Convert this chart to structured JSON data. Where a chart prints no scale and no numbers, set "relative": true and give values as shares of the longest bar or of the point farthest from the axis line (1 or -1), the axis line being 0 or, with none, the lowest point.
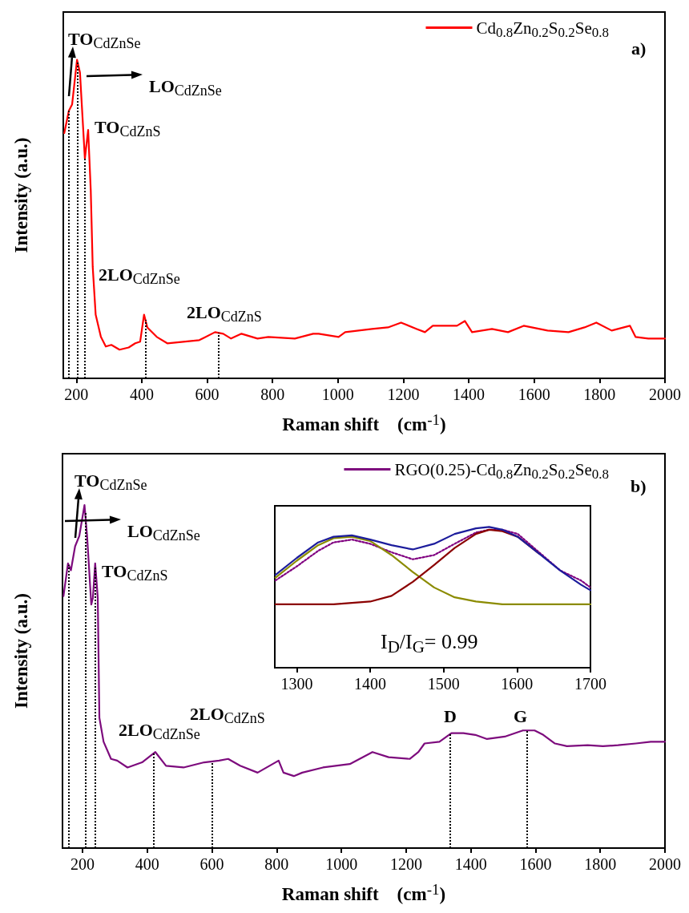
{
  "chart_data": [
    {
      "type": "line",
      "relative": true,
      "xlabel": "Raman shift    (cm$^{-1}$)",
      "ylabel": "Intensity (a.u.)",
      "xlim": [
        160,
        2000
      ],
      "xticks": [
        200,
        400,
        600,
        800,
        1000,
        1200,
        1400,
        1600,
        1800,
        2000
      ],
      "tick_labels": "x",
      "grid": false,
      "legend": "top right",
      "marker": "none",
      "line_style": "solid",
      "x": [
        163,
        177,
        187,
        202,
        211,
        226,
        236,
        244,
        250,
        259,
        275,
        290,
        307,
        332,
        360,
        380,
        395,
        407,
        417,
        446,
        478,
        527,
        576,
        624,
        649,
        673,
        705,
        754,
        787,
        868,
        924,
        941,
        1002,
        1022,
        1104,
        1153,
        1193,
        1241,
        1266,
        1290,
        1364,
        1388,
        1410,
        1471,
        1520,
        1568,
        1641,
        1705,
        1754,
        1790,
        1837,
        1893,
        1910,
        1949,
        1985,
        2000
      ],
      "series": [
        {
          "name": "Cd$_{0.8}$Zn$_{0.2}$S$_{0.2}$Se$_{0.8}$",
          "color": "#ff0000",
          "values": [
            0.77,
            0.84,
            0.86,
            1.0,
            0.96,
            0.69,
            0.78,
            0.59,
            0.35,
            0.2,
            0.13,
            0.1,
            0.105,
            0.09,
            0.097,
            0.11,
            0.115,
            0.2,
            0.16,
            0.13,
            0.11,
            0.115,
            0.12,
            0.145,
            0.14,
            0.125,
            0.14,
            0.125,
            0.13,
            0.125,
            0.14,
            0.14,
            0.13,
            0.145,
            0.155,
            0.16,
            0.175,
            0.155,
            0.145,
            0.165,
            0.165,
            0.18,
            0.145,
            0.155,
            0.145,
            0.165,
            0.15,
            0.145,
            0.16,
            0.175,
            0.15,
            0.165,
            0.13,
            0.125,
            0.125,
            0.125
          ]
        }
      ],
      "ref_lines": [
        {
          "axis": "x",
          "value": 177,
          "color": "#000000",
          "line_style": "dotted"
        },
        {
          "axis": "x",
          "value": 203,
          "color": "#000000",
          "line_style": "dotted"
        },
        {
          "axis": "x",
          "value": 226,
          "color": "#000000",
          "line_style": "dotted"
        },
        {
          "axis": "x",
          "value": 411,
          "color": "#000000",
          "line_style": "dotted"
        },
        {
          "axis": "x",
          "value": 634,
          "color": "#000000",
          "line_style": "dotted"
        }
      ],
      "annotations": [
        "TO$_{CdZnSe}$",
        "LO$_{CdZnSe}$",
        "TO$_{CdZnS}$",
        "2LO$_{CdZnSe}$",
        "2LO$_{CdZnS}$",
        "a)"
      ]
    },
    {
      "type": "line",
      "relative": true,
      "xlabel": "Raman shift    (cm$^{-1}$)",
      "ylabel": "Intensity (a.u.)",
      "xlim": [
        138,
        2000
      ],
      "xticks": [
        200,
        400,
        600,
        800,
        1000,
        1200,
        1400,
        1600,
        1800,
        2000
      ],
      "tick_labels": "x",
      "grid": false,
      "legend": "top right",
      "marker": "none",
      "line_style": "solid",
      "x": [
        141,
        155,
        164,
        177,
        190,
        206,
        214,
        227,
        232,
        239,
        247,
        252,
        265,
        288,
        307,
        339,
        384,
        425,
        458,
        512,
        576,
        622,
        650,
        687,
        741,
        806,
        821,
        853,
        879,
        943,
        1026,
        1096,
        1146,
        1211,
        1238,
        1257,
        1303,
        1340,
        1377,
        1414,
        1450,
        1505,
        1561,
        1597,
        1624,
        1660,
        1697,
        1761,
        1808,
        1855,
        1910,
        1956,
        2000
      ],
      "series": [
        {
          "name": "RGO(0.25)-Cd$_{0.8}$Zn$_{0.2}$S$_{0.2}$Se$_{0.8}$",
          "color": "#7d0b7d",
          "values": [
            0.735,
            0.83,
            0.81,
            0.88,
            0.91,
            1.0,
            0.91,
            0.71,
            0.73,
            0.83,
            0.73,
            0.38,
            0.31,
            0.26,
            0.255,
            0.235,
            0.25,
            0.28,
            0.24,
            0.235,
            0.25,
            0.255,
            0.26,
            0.24,
            0.22,
            0.255,
            0.22,
            0.21,
            0.22,
            0.235,
            0.245,
            0.28,
            0.265,
            0.26,
            0.28,
            0.305,
            0.31,
            0.335,
            0.335,
            0.33,
            0.318,
            0.325,
            0.343,
            0.343,
            0.33,
            0.305,
            0.297,
            0.3,
            0.297,
            0.3,
            0.305,
            0.31,
            0.31
          ]
        }
      ],
      "ref_lines": [
        {
          "axis": "x",
          "value": 157,
          "color": "#000000",
          "line_style": "dotted"
        },
        {
          "axis": "x",
          "value": 208,
          "color": "#000000",
          "line_style": "dotted"
        },
        {
          "axis": "x",
          "value": 240,
          "color": "#000000",
          "line_style": "dotted"
        },
        {
          "axis": "x",
          "value": 419,
          "color": "#000000",
          "line_style": "dotted"
        },
        {
          "axis": "x",
          "value": 600,
          "color": "#000000",
          "line_style": "dotted"
        },
        {
          "axis": "x",
          "value": 1337,
          "color": "#000000",
          "line_style": "dotted"
        },
        {
          "axis": "x",
          "value": 1574,
          "color": "#000000",
          "line_style": "dotted"
        }
      ],
      "annotations": [
        "TO$_{CdZnSe}$",
        "LO$_{CdZnSe}$",
        "TO$_{CdZnS}$",
        "2LO$_{CdZnSe}$",
        "2LO$_{CdZnS}$",
        "D",
        "G",
        "b)"
      ]
    },
    {
      "type": "line",
      "relative": true,
      "xlim": [
        1270,
        1700
      ],
      "xticks": [
        1300,
        1400,
        1500,
        1600,
        1700
      ],
      "tick_labels": "x",
      "grid": false,
      "marker": "none",
      "line_style": "solid",
      "x": [
        1271,
        1300,
        1329,
        1350,
        1375,
        1400,
        1429,
        1458,
        1487,
        1515,
        1544,
        1562,
        1580,
        1601,
        1630,
        1659,
        1687,
        1700
      ],
      "series": [
        {
          "color": "#800080",
          "line_style": "dotted",
          "values": [
            0.62,
            0.72,
            0.83,
            0.89,
            0.91,
            0.88,
            0.82,
            0.77,
            0.8,
            0.88,
            0.96,
            0.98,
            0.98,
            0.95,
            0.82,
            0.69,
            0.62,
            0.57
          ]
        },
        {
          "color": "#8b8b00",
          "values": [
            0.64,
            0.76,
            0.87,
            0.92,
            0.93,
            0.9,
            0.8,
            0.68,
            0.57,
            0.5,
            0.47,
            0.46,
            0.45,
            0.45,
            0.45,
            0.45,
            0.45,
            0.45
          ]
        },
        {
          "color": "#8b0000",
          "values": [
            0.45,
            0.45,
            0.45,
            0.45,
            0.46,
            0.47,
            0.51,
            0.61,
            0.73,
            0.85,
            0.95,
            0.98,
            0.97,
            0.93,
            0.81,
            null,
            null,
            null
          ]
        },
        {
          "color": "#1c1c9c",
          "values": [
            0.66,
            0.78,
            0.89,
            0.93,
            0.94,
            0.91,
            0.87,
            0.84,
            0.88,
            0.95,
            0.99,
            1.0,
            0.98,
            0.93,
            0.81,
            0.69,
            0.59,
            0.55
          ]
        }
      ],
      "annotations": [
        "I$_{D}$/I$_{G}$= 0.99"
      ]
    }
  ]
}
